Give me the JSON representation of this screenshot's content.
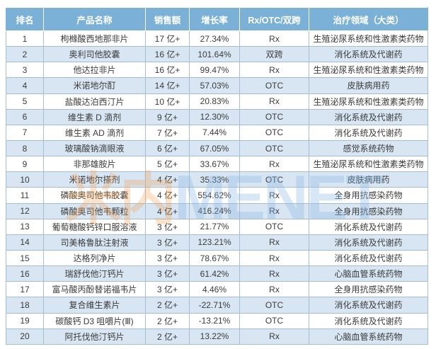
{
  "watermark": {
    "logo_text": "米内",
    "brand_text": "MENET"
  },
  "table": {
    "headers": [
      "排名",
      "产品名称",
      "销售额",
      "增长率",
      "Rx/OTC/双跨",
      "治疗领域（大类）"
    ],
    "rows": [
      [
        "1",
        "枸橼酸西地那非片",
        "17 亿+",
        "27.34%",
        "Rx",
        "生殖泌尿系统和性激素类药物"
      ],
      [
        "2",
        "奥利司他胶囊",
        "16 亿+",
        "101.64%",
        "双跨",
        "消化系统及代谢药"
      ],
      [
        "3",
        "他达拉非片",
        "16 亿+",
        "99.47%",
        "Rx",
        "生殖泌尿系统和性激素类药物"
      ],
      [
        "4",
        "米诺地尔酊",
        "14 亿+",
        "57.03%",
        "OTC",
        "皮肤病用药"
      ],
      [
        "5",
        "盐酸达泊西汀片",
        "10 亿+",
        "20.83%",
        "Rx",
        "生殖泌尿系统和性激素类药物"
      ],
      [
        "6",
        "维生素 D 滴剂",
        "9 亿+",
        "12.30%",
        "OTC",
        "消化系统及代谢药"
      ],
      [
        "7",
        "维生素 AD 滴剂",
        "7 亿+",
        "7.44%",
        "OTC",
        "消化系统及代谢药"
      ],
      [
        "8",
        "玻璃酸钠滴眼液",
        "6 亿+",
        "67.05%",
        "OTC",
        "感觉系统药物"
      ],
      [
        "9",
        "非那雄胺片",
        "5 亿+",
        "33.67%",
        "Rx",
        "生殖泌尿系统和性激素类药物"
      ],
      [
        "10",
        "米诺地尔搽剂",
        "4 亿+",
        "35.33%",
        "OTC",
        "皮肤病用药"
      ],
      [
        "11",
        "磷酸奥司他韦胶囊",
        "4 亿+",
        "554.62%",
        "Rx",
        "全身用抗感染药物"
      ],
      [
        "12",
        "磷酸奥司他韦颗粒",
        "4 亿+",
        "416.24%",
        "Rx",
        "全身用抗感染药物"
      ],
      [
        "13",
        "葡萄糖酸钙锌口服溶液",
        "3 亿+",
        "21.77%",
        "OTC",
        "消化系统及代谢药"
      ],
      [
        "14",
        "司美格鲁肽注射液",
        "3 亿+",
        "123.21%",
        "Rx",
        "消化系统及代谢药"
      ],
      [
        "15",
        "达格列净片",
        "3 亿+",
        "78.67%",
        "Rx",
        "消化系统及代谢药"
      ],
      [
        "16",
        "瑞舒伐他汀钙片",
        "3 亿+",
        "61.42%",
        "Rx",
        "心脑血管系统药物"
      ],
      [
        "17",
        "富马酸丙酚替诺福韦片",
        "3 亿+",
        "4.46%",
        "Rx",
        "全身用抗感染药物"
      ],
      [
        "18",
        "复合维生素片",
        "2 亿+",
        "-22.71%",
        "OTC",
        "消化系统及代谢药"
      ],
      [
        "19",
        "碳酸钙 D3 咀嚼片(Ⅲ)",
        "2 亿+",
        "-13.21%",
        "OTC",
        "消化系统及代谢药"
      ],
      [
        "20",
        "阿托伐他汀钙片",
        "2 亿+",
        "13.22%",
        "Rx",
        "心脑血管系统药物"
      ]
    ],
    "colors": {
      "header_bg": "#7CB1D7",
      "header_text": "#FFFFFF",
      "row_even_bg": "#D8E6F3",
      "row_odd_bg": "#FFFFFF",
      "border": "#A6BCD1",
      "body_text": "#3B3B3B"
    }
  }
}
